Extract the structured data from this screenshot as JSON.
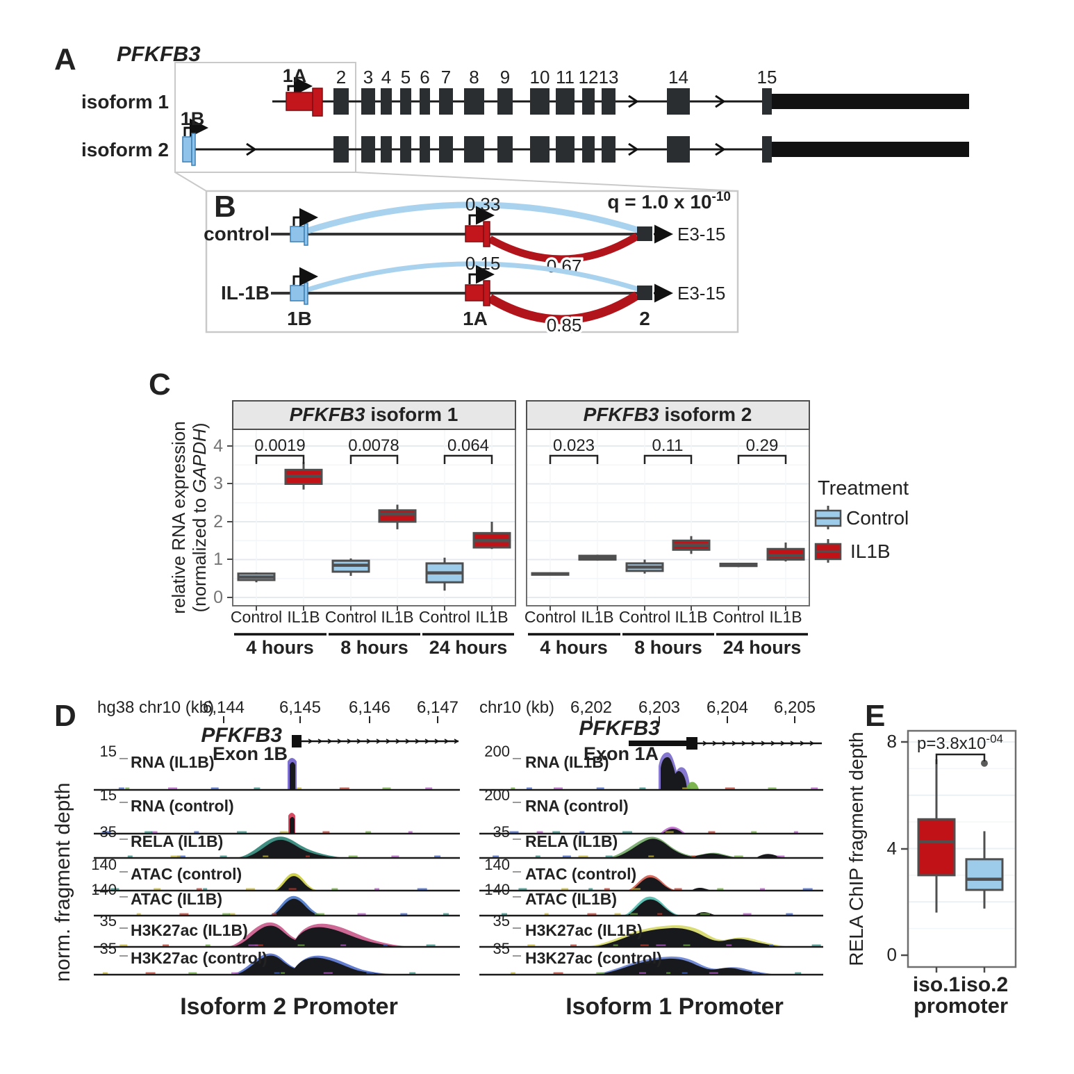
{
  "figure": {
    "panelA": {
      "label": "A",
      "gene": "PFKFB3",
      "isoform1": "isoform 1",
      "isoform2": "isoform 2",
      "exon1A": "1A",
      "exon1B": "1B",
      "exon_numbers": [
        "2",
        "3",
        "4",
        "5",
        "6",
        "7",
        "8",
        "9",
        "10",
        "11",
        "12",
        "13",
        "14",
        "15"
      ]
    },
    "panelB": {
      "label": "B",
      "q_base": "q = 1.0 x 10",
      "q_exp": "-10",
      "row1_label": "control",
      "row1_blue": "0.33",
      "row1_red": "0.67",
      "row1_end": "E3-15",
      "row2_label": "IL-1B",
      "row2_blue": "0.15",
      "row2_red": "0.85",
      "row2_end": "E3-15",
      "bottom_1B": "1B",
      "bottom_1A": "1A",
      "bottom_2": "2"
    },
    "panelC": {
      "label": "C",
      "ylabel_line1": "relative RNA expression",
      "ylabel_pre": "(normalized to ",
      "ylabel_gene": "GAPDH",
      "ylabel_post": ")",
      "legend_title": "Treatment",
      "legend_control": "Control",
      "legend_il1b": "IL1B"
    },
    "panelD": {
      "label": "D",
      "ylabel": "norm. fragment depth",
      "left": {
        "ruler": "hg38 chr10 (kb)",
        "ticks": [
          "6,144",
          "6,145",
          "6,146",
          "6,147"
        ],
        "gene": "PFKFB3",
        "exon": "Exon 1B",
        "footer": "Isoform 2 Promoter",
        "tracks": [
          {
            "scale": "15",
            "name": "RNA (IL1B)"
          },
          {
            "scale": "15",
            "name": "RNA (control)"
          },
          {
            "scale": "35",
            "name": "RELA (IL1B)"
          },
          {
            "scale": "140",
            "name": "ATAC (control)"
          },
          {
            "scale": "140",
            "name": "ATAC (IL1B)"
          },
          {
            "scale": "35",
            "name": "H3K27ac (IL1B)"
          },
          {
            "scale": "35",
            "name": "H3K27ac (control)"
          }
        ]
      },
      "right": {
        "ruler": "chr10 (kb)",
        "ticks": [
          "6,202",
          "6,203",
          "6,204",
          "6,205"
        ],
        "gene": "PFKFB3",
        "exon": "Exon 1A",
        "footer": "Isoform 1 Promoter",
        "tracks": [
          {
            "scale": "200",
            "name": "RNA (IL1B)"
          },
          {
            "scale": "200",
            "name": "RNA (control)"
          },
          {
            "scale": "35",
            "name": "RELA (IL1B)"
          },
          {
            "scale": "140",
            "name": "ATAC (control)"
          },
          {
            "scale": "140",
            "name": "ATAC (IL1B)"
          },
          {
            "scale": "35",
            "name": "H3K27ac (IL1B)"
          },
          {
            "scale": "35",
            "name": "H3K27ac (control)"
          }
        ]
      }
    },
    "panelE": {
      "label": "E",
      "ylabel": "RELA ChIP fragment depth",
      "p_base": "p=3.8x10",
      "p_exp": "-04",
      "xlabel": "promoter"
    }
  },
  "chart_data": [
    {
      "id": "pfkfb3_isoform1",
      "type": "boxplot",
      "title": "PFKFB3 isoform 1",
      "title_gene": "PFKFB3",
      "title_rest": " isoform 1",
      "ylabel": "relative RNA expression (normalized to GAPDH)",
      "ylim": [
        0,
        4
      ],
      "yticks": [
        "0",
        "1",
        "2",
        "3",
        "4"
      ],
      "groups": [
        "4 hours",
        "8 hours",
        "24 hours"
      ],
      "categories": [
        "Control",
        "IL1B",
        "Control",
        "IL1B",
        "Control",
        "IL1B"
      ],
      "pvalues": [
        "0.0019",
        "0.0078",
        "0.064"
      ],
      "legend": {
        "title": "Treatment",
        "entries": [
          "Control",
          "IL1B"
        ],
        "position": "right"
      },
      "series": [
        {
          "group": "4 hours",
          "treatment": "Control",
          "whislo": 0.4,
          "q1": 0.46,
          "med": 0.54,
          "q3": 0.63,
          "whishi": 0.66
        },
        {
          "group": "4 hours",
          "treatment": "IL1B",
          "whislo": 2.85,
          "q1": 3.0,
          "med": 3.2,
          "q3": 3.37,
          "whishi": 3.58
        },
        {
          "group": "8 hours",
          "treatment": "Control",
          "whislo": 0.57,
          "q1": 0.68,
          "med": 0.85,
          "q3": 0.97,
          "whishi": 1.03
        },
        {
          "group": "8 hours",
          "treatment": "IL1B",
          "whislo": 1.8,
          "q1": 2.0,
          "med": 2.2,
          "q3": 2.3,
          "whishi": 2.45
        },
        {
          "group": "24 hours",
          "treatment": "Control",
          "whislo": 0.18,
          "q1": 0.4,
          "med": 0.65,
          "q3": 0.9,
          "whishi": 1.05
        },
        {
          "group": "24 hours",
          "treatment": "IL1B",
          "whislo": 1.28,
          "q1": 1.32,
          "med": 1.5,
          "q3": 1.7,
          "whishi": 2.0
        }
      ]
    },
    {
      "id": "pfkfb3_isoform2",
      "type": "boxplot",
      "title": "PFKFB3 isoform 2",
      "title_gene": "PFKFB3",
      "title_rest": " isoform 2",
      "ylabel": "relative RNA expression (normalized to GAPDH)",
      "ylim": [
        0,
        4
      ],
      "yticks": [
        "0",
        "1",
        "2",
        "3",
        "4"
      ],
      "groups": [
        "4 hours",
        "8 hours",
        "24 hours"
      ],
      "categories": [
        "Control",
        "IL1B",
        "Control",
        "IL1B",
        "Control",
        "IL1B"
      ],
      "pvalues": [
        "0.023",
        "0.11",
        "0.29"
      ],
      "series": [
        {
          "group": "4 hours",
          "treatment": "Control",
          "whislo": 0.58,
          "q1": 0.6,
          "med": 0.62,
          "q3": 0.64,
          "whishi": 0.66
        },
        {
          "group": "4 hours",
          "treatment": "IL1B",
          "whislo": 0.97,
          "q1": 1.0,
          "med": 1.05,
          "q3": 1.1,
          "whishi": 1.13
        },
        {
          "group": "8 hours",
          "treatment": "Control",
          "whislo": 0.63,
          "q1": 0.7,
          "med": 0.8,
          "q3": 0.9,
          "whishi": 1.0
        },
        {
          "group": "8 hours",
          "treatment": "IL1B",
          "whislo": 1.15,
          "q1": 1.26,
          "med": 1.38,
          "q3": 1.5,
          "whishi": 1.62
        },
        {
          "group": "24 hours",
          "treatment": "Control",
          "whislo": 0.8,
          "q1": 0.83,
          "med": 0.86,
          "q3": 0.89,
          "whishi": 0.91
        },
        {
          "group": "24 hours",
          "treatment": "IL1B",
          "whislo": 0.95,
          "q1": 1.0,
          "med": 1.1,
          "q3": 1.28,
          "whishi": 1.45
        }
      ]
    },
    {
      "id": "rela_chip",
      "type": "boxplot",
      "ylabel": "RELA ChIP fragment depth",
      "ylim": [
        0,
        8
      ],
      "yticks": [
        "0",
        "4",
        "8"
      ],
      "categories": [
        "iso.1",
        "iso.2"
      ],
      "xlabel": "promoter",
      "pvalue": "p=3.8x10-04",
      "series": [
        {
          "label": "iso.1",
          "color": "red",
          "whislo": 1.6,
          "q1": 3.0,
          "med": 4.25,
          "q3": 5.1,
          "whishi": 7.35
        },
        {
          "label": "iso.2",
          "color": "blue",
          "whislo": 1.75,
          "q1": 2.45,
          "med": 2.85,
          "q3": 3.6,
          "whishi": 4.65,
          "outliers": [
            7.2
          ]
        }
      ]
    }
  ],
  "colors": {
    "control_blue": "#9DCBEA",
    "il1b_red": "#C01217",
    "exon_red": "#C3161C",
    "exon_blue": "#8FC3E9",
    "arc_blue": "#A9D2EF",
    "arc_red": "#B2141B",
    "label_blue": "#62ACE0",
    "label_red": "#D8274A",
    "box_stroke": "#4F4F4F",
    "exon_dark": "#2B2E31"
  }
}
